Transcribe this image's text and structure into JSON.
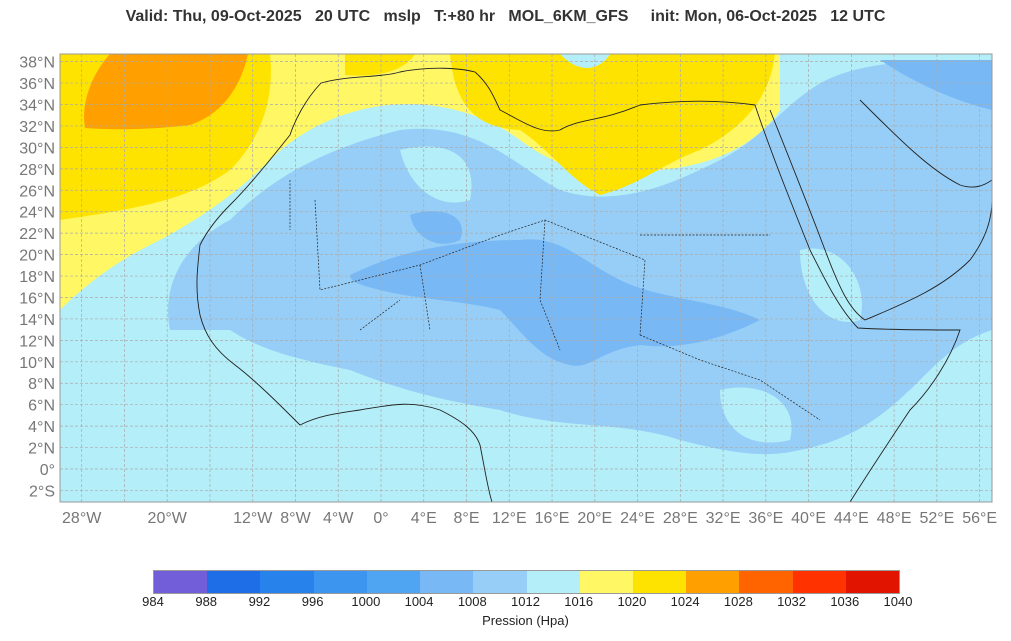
{
  "header": {
    "valid": "Valid: Thu, 09-Oct-2025",
    "valid_hour": "20 UTC",
    "variable": "mslp",
    "lead": "T:+80 hr",
    "model": "MOL_6KM_GFS",
    "init": "init: Mon, 06-Oct-2025",
    "init_hour": "12 UTC"
  },
  "map": {
    "lon_range": [
      -30,
      57
    ],
    "lat_range": [
      -3,
      38.75
    ],
    "grid_step_deg": 4,
    "grid": "dashed",
    "lat_labels": [
      "38°N",
      "36°N",
      "34°N",
      "32°N",
      "30°N",
      "28°N",
      "26°N",
      "24°N",
      "22°N",
      "20°N",
      "18°N",
      "16°N",
      "14°N",
      "12°N",
      "10°N",
      "8°N",
      "6°N",
      "4°N",
      "2°N",
      "0°",
      "2°S"
    ],
    "lon_labels": [
      "28°W",
      "20°W",
      "12°W",
      "8°W",
      "4°W",
      "0°",
      "4°E",
      "8°E",
      "12°E",
      "16°E",
      "20°E",
      "24°E",
      "28°E",
      "32°E",
      "36°E",
      "40°E",
      "44°E",
      "48°E",
      "52°E",
      "56°E"
    ]
  },
  "colorbar": {
    "title": "Pression (Hpa)",
    "labels": [
      "984",
      "988",
      "992",
      "996",
      "1000",
      "1004",
      "1008",
      "1012",
      "1016",
      "1020",
      "1024",
      "1028",
      "1032",
      "1036",
      "1040"
    ],
    "colors": [
      "#735ed9",
      "#1e6ee8",
      "#2882ec",
      "#3c96f0",
      "#50a5f2",
      "#78b8f5",
      "#97cef7",
      "#b4eef8",
      "#fff864",
      "#ffe300",
      "#ffa000",
      "#ff6400",
      "#ff3200",
      "#e11400"
    ]
  }
}
